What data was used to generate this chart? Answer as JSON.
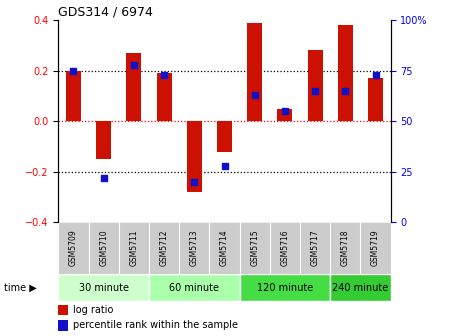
{
  "title": "GDS314 / 6974",
  "samples": [
    "GSM5709",
    "GSM5710",
    "GSM5711",
    "GSM5712",
    "GSM5713",
    "GSM5714",
    "GSM5715",
    "GSM5716",
    "GSM5717",
    "GSM5718",
    "GSM5719"
  ],
  "log_ratios": [
    0.2,
    -0.15,
    0.27,
    0.19,
    -0.28,
    -0.12,
    0.39,
    0.05,
    0.28,
    0.38,
    0.17
  ],
  "percentile_ranks": [
    75,
    22,
    78,
    73,
    20,
    28,
    63,
    55,
    65,
    65,
    73
  ],
  "groups": [
    {
      "label": "30 minute",
      "start": 0,
      "end": 3,
      "color": "#ccffcc"
    },
    {
      "label": "60 minute",
      "start": 3,
      "end": 6,
      "color": "#aaffaa"
    },
    {
      "label": "120 minute",
      "start": 6,
      "end": 9,
      "color": "#44dd44"
    },
    {
      "label": "240 minute",
      "start": 9,
      "end": 11,
      "color": "#33cc33"
    }
  ],
  "bar_color": "#cc1100",
  "dot_color": "#1111cc",
  "ylim": [
    -0.4,
    0.4
  ],
  "y2lim": [
    0,
    100
  ],
  "dotted_lines_black": [
    0.2,
    -0.2
  ],
  "dotted_line_red": 0.0,
  "background_color": "#ffffff",
  "plot_bg": "#ffffff",
  "label_bg": "#cccccc",
  "yticks_left": [
    -0.4,
    -0.2,
    0.0,
    0.2,
    0.4
  ],
  "yticks_right": [
    0,
    25,
    50,
    75,
    100
  ],
  "ytick_right_labels": [
    "0",
    "25",
    "50",
    "75",
    "100%"
  ]
}
